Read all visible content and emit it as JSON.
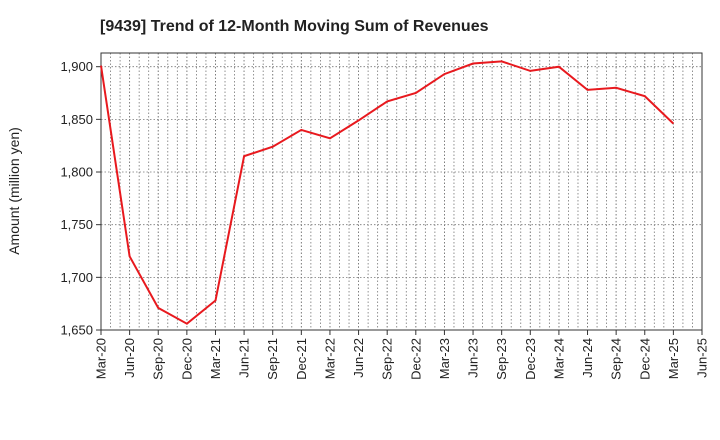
{
  "chart_data": {
    "type": "line",
    "title": "[9439]  Trend of 12-Month Moving Sum of Revenues",
    "xlabel": "",
    "ylabel": "Amount (million yen)",
    "x": [
      "Mar-20",
      "Jun-20",
      "Sep-20",
      "Dec-20",
      "Mar-21",
      "Jun-21",
      "Sep-21",
      "Dec-21",
      "Mar-22",
      "Jun-22",
      "Sep-22",
      "Dec-22",
      "Mar-23",
      "Jun-23",
      "Sep-23",
      "Dec-23",
      "Mar-24",
      "Jun-24",
      "Sep-24",
      "Dec-24",
      "Mar-25",
      "Jun-25"
    ],
    "series": [
      {
        "color": "#e8191e",
        "values": [
          1901,
          1720,
          1671,
          1656,
          1678,
          1815,
          1824,
          1840,
          1832,
          1849,
          1867,
          1875,
          1893,
          1903,
          1905,
          1896,
          1900,
          1878,
          1880,
          1872,
          1846,
          null
        ]
      }
    ],
    "ylim": [
      1650,
      1913
    ],
    "yticks": [
      1650,
      1700,
      1750,
      1800,
      1850,
      1900
    ],
    "ytick_labels": [
      "1,650",
      "1,700",
      "1,750",
      "1,800",
      "1,850",
      "1,900"
    ],
    "grid": true,
    "minor_x_grid": 3
  }
}
